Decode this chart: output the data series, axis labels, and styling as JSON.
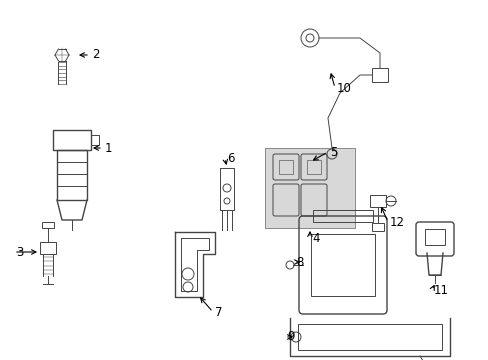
{
  "background_color": "#ffffff",
  "line_color": "#444444",
  "label_color": "#000000",
  "fig_width": 4.89,
  "fig_height": 3.6,
  "dpi": 100
}
